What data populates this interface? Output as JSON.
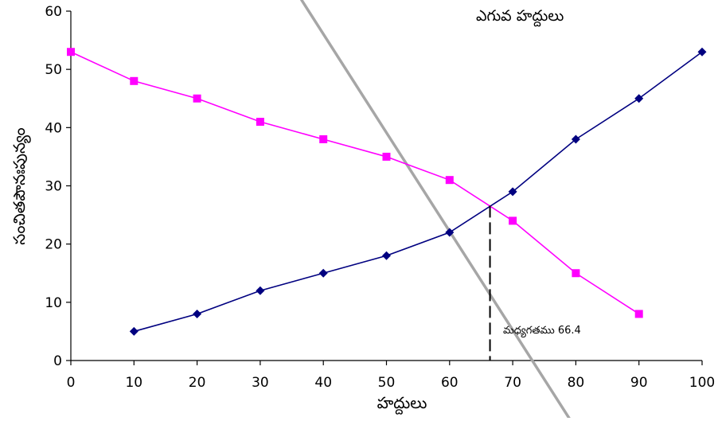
{
  "chart_data": {
    "type": "line",
    "title": "",
    "xlabel": "హద్దులు",
    "ylabel": "సంచితపౌనఃపున్యం",
    "xlim": [
      0,
      100
    ],
    "ylim": [
      0,
      60
    ],
    "x_ticks": [
      0,
      10,
      20,
      30,
      40,
      50,
      60,
      70,
      80,
      90,
      100
    ],
    "y_ticks": [
      0,
      10,
      20,
      30,
      40,
      50,
      60
    ],
    "grid": false,
    "series": [
      {
        "name": "",
        "marker": "diamond",
        "color": "#000080",
        "points": [
          [
            10,
            5
          ],
          [
            20,
            8
          ],
          [
            30,
            12
          ],
          [
            40,
            15
          ],
          [
            50,
            18
          ],
          [
            60,
            22
          ],
          [
            70,
            29
          ],
          [
            80,
            38
          ],
          [
            90,
            45
          ],
          [
            100,
            53
          ]
        ]
      },
      {
        "name": "",
        "marker": "square",
        "color": "#ff00ff",
        "points": [
          [
            0,
            53
          ],
          [
            10,
            48
          ],
          [
            20,
            45
          ],
          [
            30,
            41
          ],
          [
            40,
            38
          ],
          [
            50,
            35
          ],
          [
            60,
            31
          ],
          [
            70,
            24
          ],
          [
            80,
            15
          ],
          [
            90,
            8
          ]
        ]
      }
    ],
    "trend_line": {
      "color": "#a6a6a6",
      "points": [
        [
          36.5,
          62
        ],
        [
          79,
          -10
        ]
      ]
    },
    "annotations": {
      "upper_label": "ఎగువ హద్దులు",
      "median_label": "మధ్యగతము 66.4",
      "median_x": 66.4,
      "median_y": 26.6
    }
  }
}
